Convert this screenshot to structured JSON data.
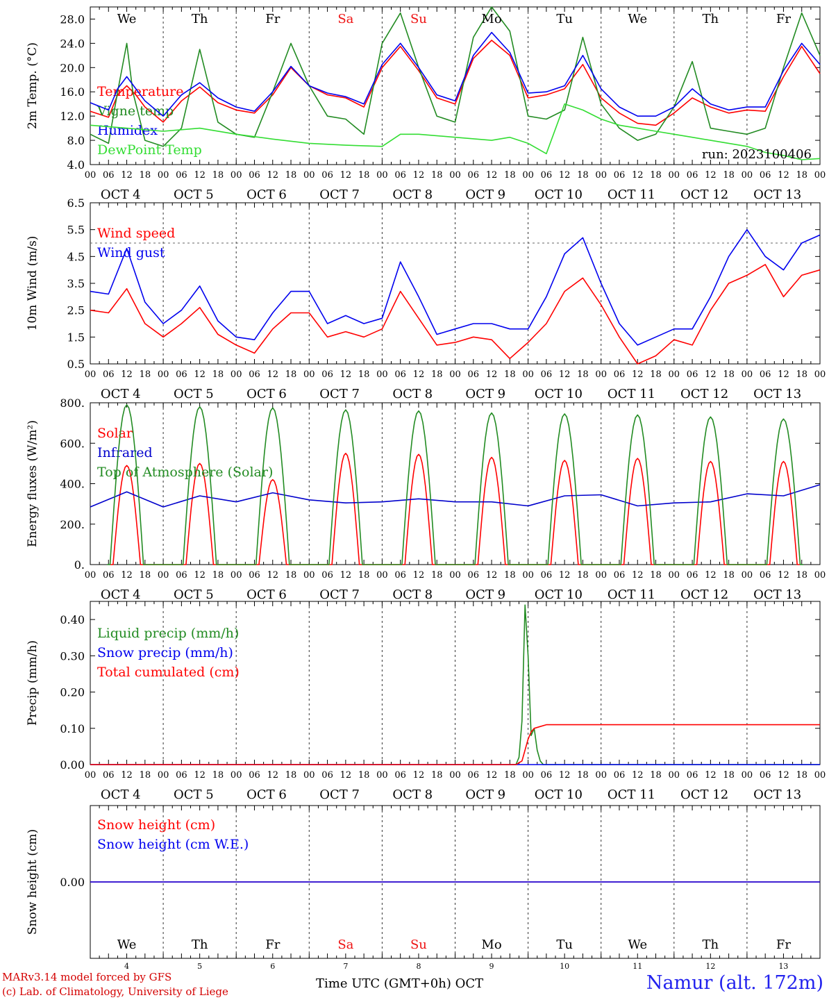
{
  "run_label": "run: 2023100406",
  "days": {
    "weekdays": [
      "We",
      "Th",
      "Fr",
      "Sa",
      "Su",
      "Mo",
      "Tu",
      "We",
      "Th",
      "Fr"
    ],
    "weekend_color": "#ee1111",
    "date_labels": [
      "OCT  4",
      "OCT  5",
      "OCT  6",
      "OCT  7",
      "OCT  8",
      "OCT  9",
      "OCT 10",
      "OCT 11",
      "OCT 12",
      "OCT 13"
    ],
    "day_numbers": [
      "4",
      "5",
      "6",
      "7",
      "8",
      "9",
      "10",
      "11",
      "12",
      "13"
    ],
    "hour_labels": [
      "00",
      "06",
      "12",
      "18"
    ],
    "end_hour_label": "00"
  },
  "footer": {
    "model_line": "MARv3.14 model forced by GFS",
    "credit_line": "(c) Lab. of Climatology, University of Liege",
    "time_axis_label": "Time UTC (GMT+0h) OCT",
    "station_label": "Namur (alt. 172m)"
  },
  "chart_data": [
    {
      "type": "line",
      "ylabel": "2m Temp. (°C)",
      "ylim": [
        4,
        30
      ],
      "yticks": [
        4,
        8,
        12,
        16,
        20,
        24,
        28
      ],
      "ytick_labels": [
        "4.0",
        "8.0",
        "12.0",
        "16.0",
        "20.0",
        "24.0",
        "28.0"
      ],
      "x_unit": "hours since OCT 4 00 UTC",
      "series": [
        {
          "name": "Temperature",
          "color": "#ff0000",
          "x": [
            0,
            6,
            9,
            12,
            15,
            18,
            24,
            30,
            36,
            42,
            48,
            54,
            60,
            66,
            72,
            78,
            84,
            90,
            96,
            102,
            108,
            114,
            120,
            126,
            132,
            138,
            144,
            150,
            156,
            162,
            168,
            174,
            180,
            186,
            192,
            198,
            204,
            210,
            216,
            222,
            228,
            234,
            240
          ],
          "y": [
            12.8,
            11.8,
            15.5,
            17.0,
            15.5,
            13.5,
            11.0,
            14.5,
            16.8,
            14.2,
            13.0,
            12.5,
            15.5,
            20.0,
            17.0,
            15.5,
            15.0,
            13.5,
            20.0,
            23.5,
            19.5,
            15.0,
            14.0,
            21.5,
            24.5,
            22.0,
            15.0,
            15.5,
            16.5,
            20.5,
            15.0,
            12.5,
            10.8,
            10.5,
            12.5,
            15.0,
            13.5,
            12.5,
            13.0,
            12.8,
            18.5,
            23.5,
            19.0
          ]
        },
        {
          "name": "Vigne temp",
          "color": "#228b22",
          "x": [
            0,
            6,
            9,
            12,
            14,
            18,
            24,
            30,
            36,
            42,
            48,
            54,
            60,
            66,
            72,
            78,
            84,
            90,
            96,
            102,
            108,
            114,
            120,
            126,
            132,
            138,
            144,
            150,
            156,
            162,
            168,
            174,
            180,
            186,
            192,
            198,
            204,
            210,
            216,
            222,
            228,
            234,
            240
          ],
          "y": [
            9.0,
            7.5,
            16.0,
            24.0,
            16.0,
            8.0,
            7.0,
            10.0,
            23.0,
            11.0,
            9.0,
            8.5,
            16.0,
            24.0,
            17.0,
            12.0,
            11.5,
            9.0,
            24.0,
            29.0,
            20.0,
            12.0,
            11.0,
            25.0,
            30.0,
            26.0,
            12.0,
            11.5,
            13.0,
            25.0,
            14.0,
            10.0,
            8.0,
            9.0,
            13.5,
            21.0,
            10.0,
            9.5,
            9.0,
            10.0,
            20.0,
            29.0,
            22.0
          ]
        },
        {
          "name": "Humidex",
          "color": "#0000ee",
          "x": [
            0,
            6,
            9,
            12,
            15,
            18,
            24,
            30,
            36,
            42,
            48,
            54,
            60,
            66,
            72,
            78,
            84,
            90,
            96,
            102,
            108,
            114,
            120,
            126,
            132,
            138,
            144,
            150,
            156,
            162,
            168,
            174,
            180,
            186,
            192,
            198,
            204,
            210,
            216,
            222,
            228,
            234,
            240
          ],
          "y": [
            14.2,
            13.0,
            16.5,
            18.5,
            16.5,
            14.5,
            12.0,
            15.5,
            17.5,
            15.0,
            13.5,
            12.8,
            16.0,
            20.2,
            17.0,
            15.8,
            15.2,
            14.0,
            20.5,
            24.0,
            20.0,
            15.5,
            14.5,
            22.0,
            25.8,
            22.5,
            15.8,
            16.0,
            17.0,
            22.0,
            16.5,
            13.5,
            12.0,
            12.0,
            13.5,
            16.5,
            14.0,
            13.0,
            13.5,
            13.5,
            19.5,
            24.0,
            20.5
          ]
        },
        {
          "name": "DewPoint Temp",
          "color": "#33dd33",
          "x": [
            0,
            12,
            24,
            36,
            48,
            60,
            72,
            84,
            96,
            102,
            108,
            120,
            132,
            138,
            144,
            150,
            156,
            162,
            168,
            174,
            180,
            186,
            192,
            198,
            204,
            210,
            216,
            222,
            228,
            234,
            240
          ],
          "y": [
            10.5,
            10.0,
            9.5,
            10.0,
            9.0,
            8.2,
            7.5,
            7.2,
            7.0,
            9.0,
            9.0,
            8.5,
            8.0,
            8.5,
            7.5,
            5.8,
            14.0,
            13.0,
            11.5,
            10.5,
            10.0,
            9.5,
            9.0,
            8.5,
            8.0,
            7.5,
            7.0,
            6.0,
            5.5,
            4.8,
            5.0
          ]
        }
      ]
    },
    {
      "type": "line",
      "ylabel": "10m Wind (m/s)",
      "ylim": [
        0.5,
        6.5
      ],
      "yticks": [
        0.5,
        1.5,
        2.5,
        3.5,
        4.5,
        5.5,
        6.5
      ],
      "ytick_labels": [
        "0.5",
        "1.5",
        "2.5",
        "3.5",
        "4.5",
        "5.5",
        "6.5"
      ],
      "reference_line": 5.0,
      "series": [
        {
          "name": "Wind speed",
          "color": "#ff0000",
          "x": [
            0,
            6,
            12,
            18,
            24,
            30,
            36,
            42,
            48,
            54,
            60,
            66,
            72,
            78,
            84,
            90,
            96,
            102,
            108,
            114,
            120,
            126,
            132,
            138,
            144,
            150,
            156,
            162,
            168,
            174,
            180,
            186,
            192,
            198,
            204,
            210,
            216,
            222,
            228,
            234,
            240
          ],
          "y": [
            2.5,
            2.4,
            3.3,
            2.0,
            1.5,
            2.0,
            2.6,
            1.6,
            1.2,
            0.9,
            1.8,
            2.4,
            2.4,
            1.5,
            1.7,
            1.5,
            1.8,
            3.2,
            2.2,
            1.2,
            1.3,
            1.5,
            1.4,
            0.7,
            1.3,
            2.0,
            3.2,
            3.7,
            2.7,
            1.5,
            0.5,
            0.8,
            1.4,
            1.2,
            2.5,
            3.5,
            3.8,
            4.2,
            3.0,
            3.8,
            4.0
          ]
        },
        {
          "name": "Wind gust",
          "color": "#0000ee",
          "x": [
            0,
            6,
            12,
            18,
            24,
            30,
            36,
            42,
            48,
            54,
            60,
            66,
            72,
            78,
            84,
            90,
            96,
            102,
            108,
            114,
            120,
            126,
            132,
            138,
            144,
            150,
            156,
            162,
            168,
            174,
            180,
            186,
            192,
            198,
            204,
            210,
            216,
            222,
            228,
            234,
            240
          ],
          "y": [
            3.2,
            3.1,
            4.8,
            2.8,
            2.0,
            2.5,
            3.4,
            2.1,
            1.5,
            1.4,
            2.4,
            3.2,
            3.2,
            2.0,
            2.3,
            2.0,
            2.2,
            4.3,
            3.0,
            1.6,
            1.8,
            2.0,
            2.0,
            1.8,
            1.8,
            3.0,
            4.6,
            5.2,
            3.5,
            2.0,
            1.2,
            1.5,
            1.8,
            1.8,
            3.0,
            4.5,
            5.5,
            4.5,
            4.0,
            5.0,
            5.3
          ]
        }
      ]
    },
    {
      "type": "line",
      "ylabel": "Energy fluxes (W/m²)",
      "ylim": [
        0,
        800
      ],
      "yticks": [
        0,
        200,
        400,
        600,
        800
      ],
      "ytick_labels": [
        "0.",
        "200.",
        "400.",
        "600.",
        "800."
      ],
      "series": [
        {
          "name": "Solar",
          "color": "#ff0000",
          "daily_peaks": [
            490,
            500,
            420,
            550,
            545,
            530,
            515,
            525,
            510,
            510
          ]
        },
        {
          "name": "Infrared",
          "color": "#0000cc",
          "x": [
            0,
            12,
            24,
            36,
            48,
            60,
            72,
            84,
            96,
            108,
            120,
            132,
            144,
            156,
            168,
            180,
            192,
            204,
            216,
            228,
            240
          ],
          "y": [
            285,
            360,
            285,
            340,
            310,
            355,
            320,
            305,
            310,
            325,
            310,
            310,
            290,
            340,
            345,
            290,
            305,
            310,
            350,
            340,
            395
          ]
        },
        {
          "name": "Top of Atmosphere (Solar)",
          "color": "#228b22",
          "daily_peaks": [
            790,
            780,
            775,
            765,
            760,
            750,
            745,
            740,
            730,
            720
          ]
        }
      ]
    },
    {
      "type": "line",
      "ylabel": "Precip (mm/h)",
      "ylim": [
        0,
        0.45
      ],
      "yticks": [
        0,
        0.1,
        0.2,
        0.3,
        0.4
      ],
      "ytick_labels": [
        "0.00",
        "0.10",
        "0.20",
        "0.30",
        "0.40"
      ],
      "series": [
        {
          "name": "Liquid precip (mm/h)",
          "color": "#228b22",
          "x": [
            0,
            140,
            141,
            142,
            143,
            144,
            145,
            146,
            147,
            148,
            149,
            150,
            240
          ],
          "y": [
            0,
            0,
            0.02,
            0.12,
            0.44,
            0.3,
            0.08,
            0.1,
            0.04,
            0.01,
            0,
            0,
            0
          ]
        },
        {
          "name": "Snow precip (mm/h)",
          "color": "#0000ee",
          "x": [
            0,
            240
          ],
          "y": [
            0,
            0
          ]
        },
        {
          "name": "Total cumulated (cm)",
          "color": "#ff0000",
          "x": [
            0,
            140,
            142,
            143,
            144,
            145,
            146,
            148,
            150,
            240
          ],
          "y": [
            0,
            0,
            0.01,
            0.04,
            0.07,
            0.09,
            0.1,
            0.105,
            0.11,
            0.11
          ]
        }
      ]
    },
    {
      "type": "line",
      "ylabel": "Snow height (cm)",
      "ylim": [
        -1,
        1
      ],
      "yticks": [
        0
      ],
      "ytick_labels": [
        "0.00"
      ],
      "series": [
        {
          "name": "Snow height (cm)",
          "color": "#ff0000",
          "x": [
            0,
            240
          ],
          "y": [
            0,
            0
          ]
        },
        {
          "name": "Snow height (cm W.E.)",
          "color": "#0000ee",
          "x": [
            0,
            240
          ],
          "y": [
            0,
            0
          ]
        }
      ]
    }
  ]
}
